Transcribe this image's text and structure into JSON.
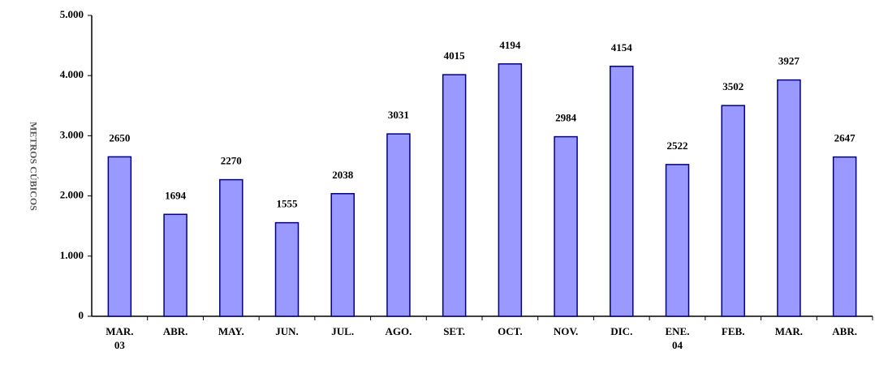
{
  "chart_data": {
    "type": "bar",
    "y_label": "METROS CÚBICOS",
    "categories": [
      "MAR. 03",
      "ABR.",
      "MAY.",
      "JUN.",
      "JUL.",
      "AGO.",
      "SET.",
      "OCT.",
      "NOV.",
      "DIC.",
      "ENE. 04",
      "FEB.",
      "MAR.",
      "ABR."
    ],
    "values": [
      2650,
      1694,
      2270,
      1555,
      2038,
      3031,
      4015,
      4194,
      2984,
      4154,
      2522,
      3502,
      3927,
      2647
    ],
    "color": "#9999ff",
    "ylim": [
      0,
      5000
    ],
    "yticks": [
      0,
      {
        "value": 1000,
        "label": "1.000"
      },
      {
        "value": 2000,
        "label": "2.000"
      },
      {
        "value": 3000,
        "label": "3.000"
      },
      {
        "value": 4000,
        "label": "4.000"
      },
      {
        "value": 5000,
        "label": "5.000"
      }
    ]
  }
}
